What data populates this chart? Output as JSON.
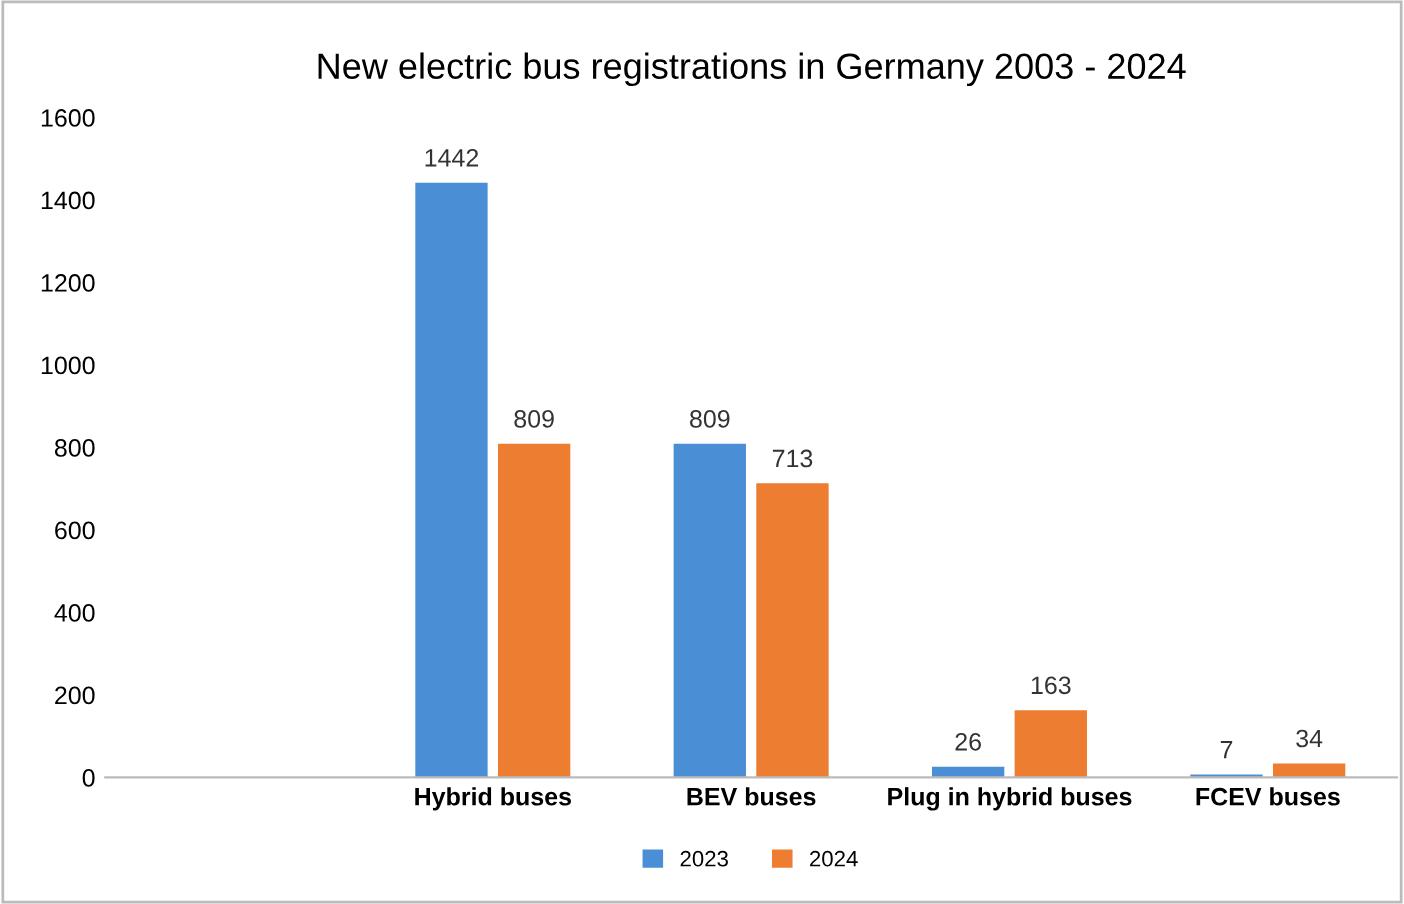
{
  "chart_data": {
    "type": "bar",
    "title": "New electric bus registrations in Germany 2003 - 2024",
    "categories": [
      null,
      "Hybrid buses",
      "BEV buses",
      "Plug in hybrid buses",
      "FCEV buses"
    ],
    "series": [
      {
        "name": "2023",
        "color": "#4a8fd6",
        "values": [
          null,
          1442,
          809,
          26,
          7
        ]
      },
      {
        "name": "2024",
        "color": "#ed7d31",
        "values": [
          null,
          809,
          713,
          163,
          34
        ]
      }
    ],
    "ylim": [
      0,
      1600
    ],
    "yticks": [
      0,
      200,
      400,
      600,
      800,
      1000,
      1200,
      1400,
      1600
    ],
    "grid": false,
    "legend": "bottom",
    "data_labels": true
  }
}
